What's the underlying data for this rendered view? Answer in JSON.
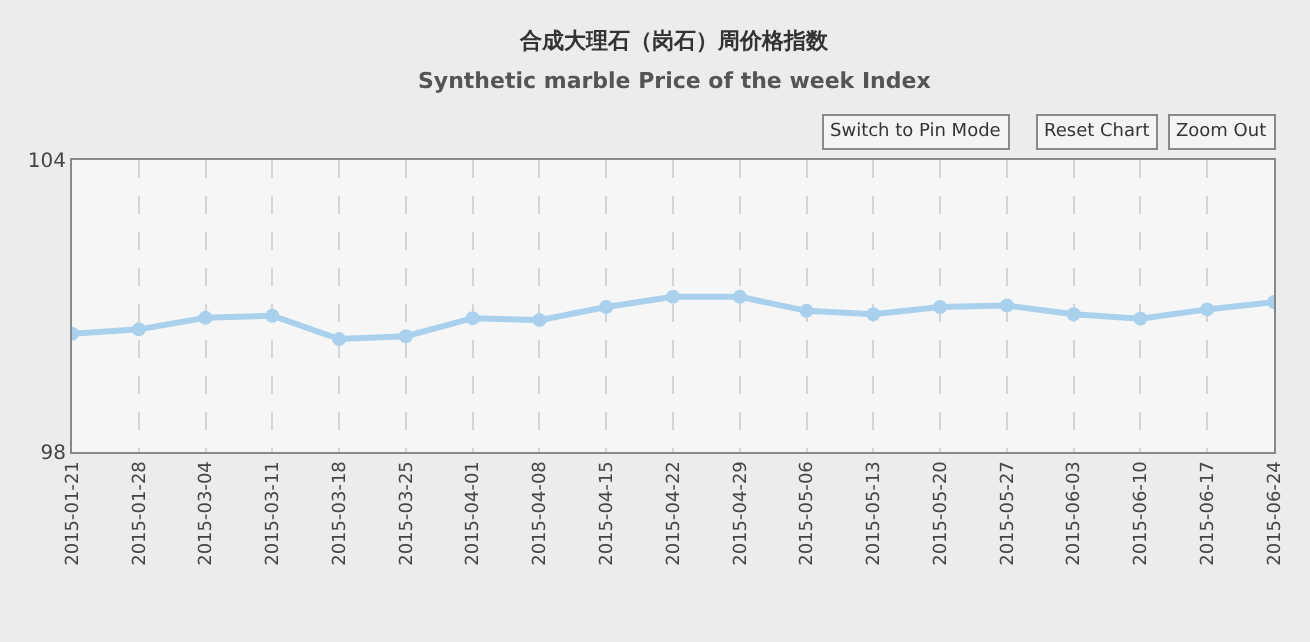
{
  "chart_data": {
    "type": "line",
    "title": "合成大理石（岗石）周价格指数",
    "subtitle": "Synthetic marble Price of the week Index",
    "categories": [
      "2015-01-21",
      "2015-01-28",
      "2015-03-04",
      "2015-03-11",
      "2015-03-18",
      "2015-03-25",
      "2015-04-01",
      "2015-04-08",
      "2015-04-15",
      "2015-04-22",
      "2015-04-29",
      "2015-05-06",
      "2015-05-13",
      "2015-05-20",
      "2015-05-27",
      "2015-06-03",
      "2015-06-10",
      "2015-06-17",
      "2015-06-24"
    ],
    "series": [
      {
        "color": "#a9d1ee",
        "values": [
          100.43,
          100.52,
          100.76,
          100.8,
          100.32,
          100.38,
          100.75,
          100.71,
          100.98,
          101.19,
          101.19,
          100.9,
          100.83,
          100.98,
          101.01,
          100.83,
          100.74,
          100.93,
          101.08
        ]
      }
    ],
    "ylim": [
      98,
      104
    ],
    "yticks": [
      98,
      104
    ],
    "grid": "x",
    "marker": "circle",
    "line_style": "solid",
    "annotations": [
      "Switch to Pin Mode",
      "Reset Chart",
      "Zoom Out"
    ]
  }
}
